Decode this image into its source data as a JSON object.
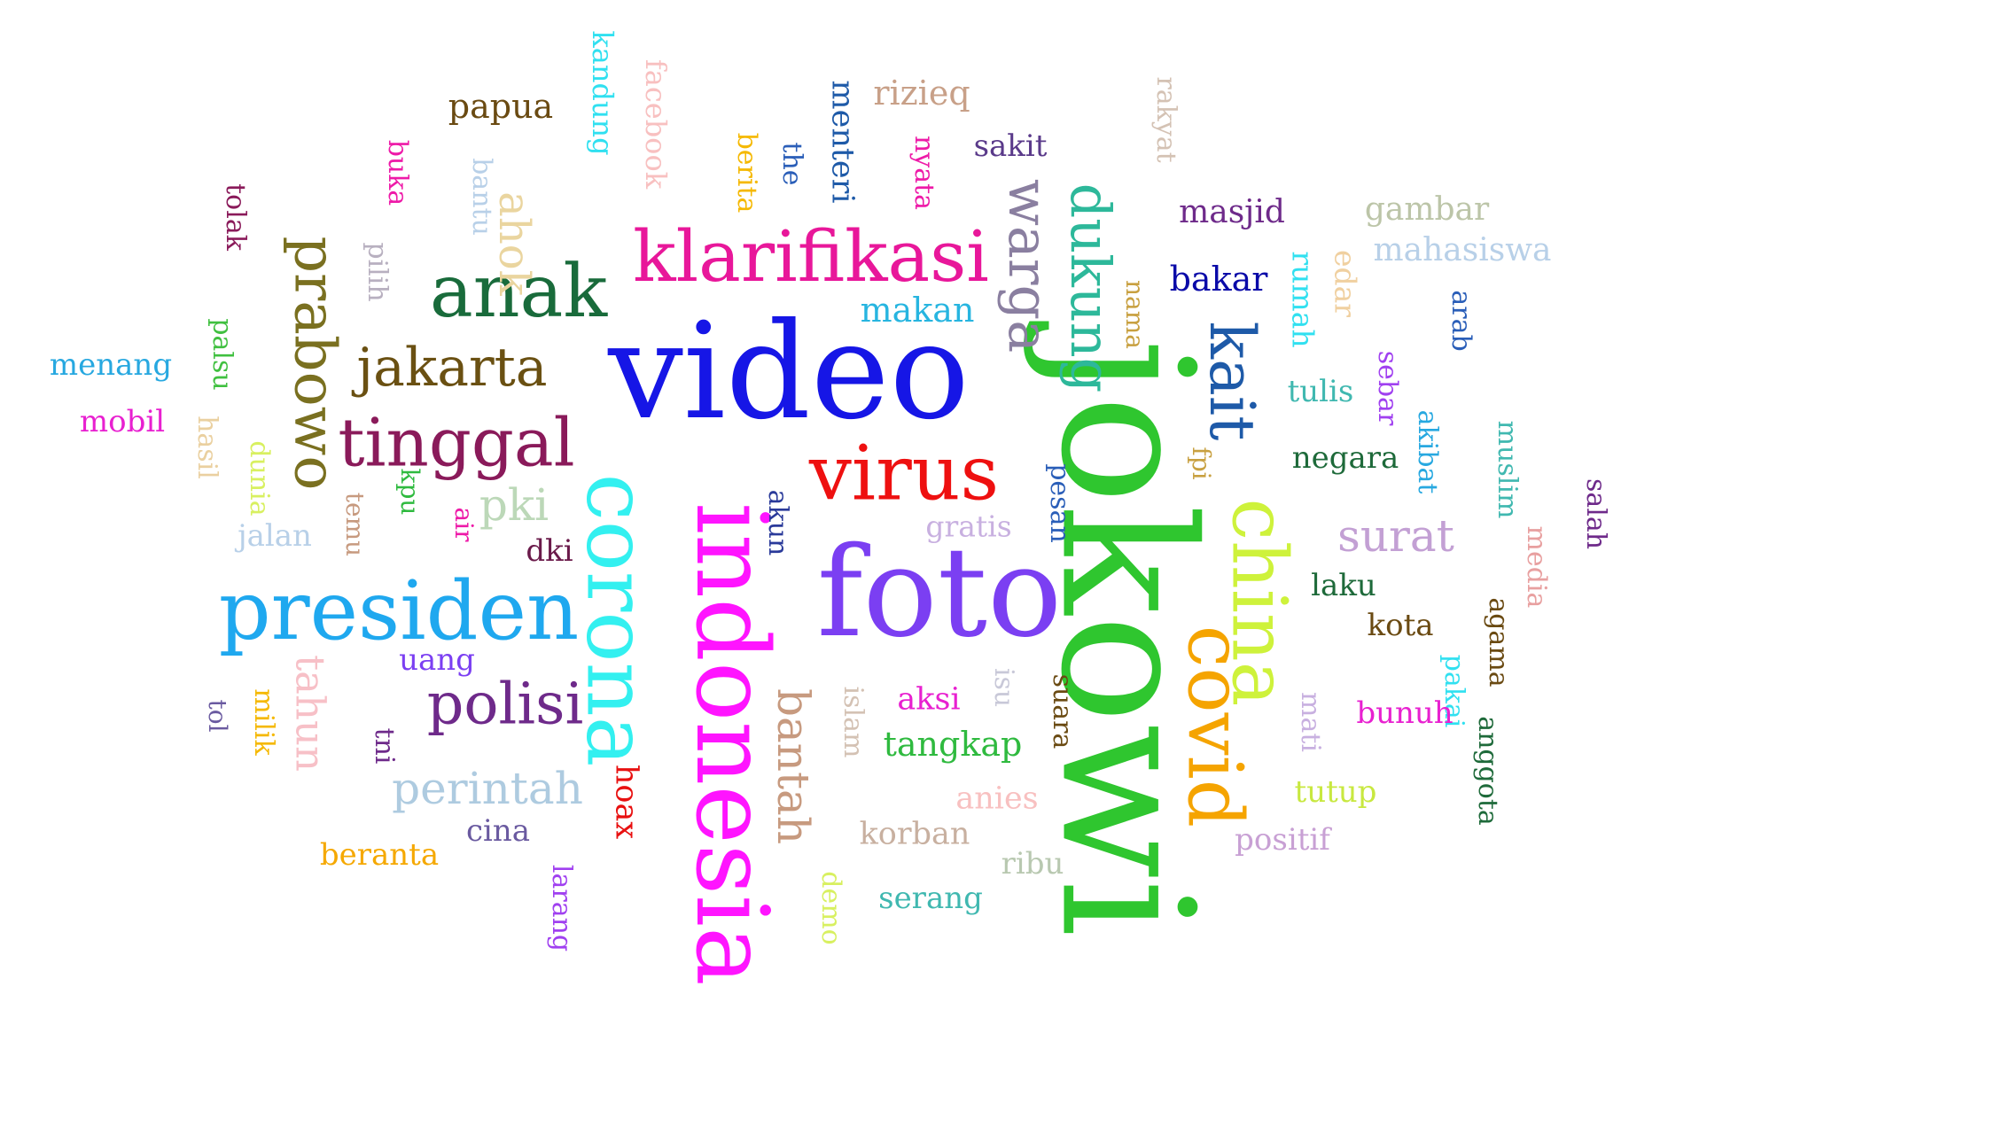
{
  "words": [
    {
      "text": "video",
      "color": "#1616e6",
      "vertical": false
    },
    {
      "text": "foto",
      "color": "#7b3ff2",
      "vertical": false
    },
    {
      "text": "jokowi",
      "color": "#2fc62f",
      "vertical": true
    },
    {
      "text": "indonesia",
      "color": "#ff14ff",
      "vertical": true
    },
    {
      "text": "corona",
      "color": "#33f0f0",
      "vertical": true
    },
    {
      "text": "presiden",
      "color": "#1fa8ef",
      "vertical": false
    },
    {
      "text": "klarifikasi",
      "color": "#e8179a",
      "vertical": false
    },
    {
      "text": "virus",
      "color": "#ee1010",
      "vertical": false
    },
    {
      "text": "covid",
      "color": "#f5a400",
      "vertical": true
    },
    {
      "text": "china",
      "color": "#cef23b",
      "vertical": true
    },
    {
      "text": "anak",
      "color": "#196b3b",
      "vertical": false
    },
    {
      "text": "tinggal",
      "color": "#8a1a5a",
      "vertical": false
    },
    {
      "text": "prabowo",
      "color": "#7a7020",
      "vertical": true
    },
    {
      "text": "jakarta",
      "color": "#6a5012",
      "vertical": false
    },
    {
      "text": "polisi",
      "color": "#6e2a8a",
      "vertical": false
    },
    {
      "text": "kait",
      "color": "#1e5aa8",
      "vertical": true
    },
    {
      "text": "warga",
      "color": "#8a7fa0",
      "vertical": true
    },
    {
      "text": "dukung",
      "color": "#2db89a",
      "vertical": true
    },
    {
      "text": "perintah",
      "color": "#aecbe0",
      "vertical": false
    },
    {
      "text": "bantah",
      "color": "#c79a7f",
      "vertical": true
    },
    {
      "text": "surat",
      "color": "#c3a0d4",
      "vertical": false
    },
    {
      "text": "tahun",
      "color": "#f7c0c7",
      "vertical": true
    },
    {
      "text": "pki",
      "color": "#bcd8b8",
      "vertical": false
    },
    {
      "text": "ahok",
      "color": "#ead59f",
      "vertical": true
    },
    {
      "text": "makan",
      "color": "#27b5e0",
      "vertical": false
    },
    {
      "text": "bakar",
      "color": "#0a0aa8",
      "vertical": false
    },
    {
      "text": "hoax",
      "color": "#e81010",
      "vertical": true
    },
    {
      "text": "tangkap",
      "color": "#2fba3f",
      "vertical": false
    },
    {
      "text": "papua",
      "color": "#6a4a12",
      "vertical": false
    },
    {
      "text": "rizieq",
      "color": "#c8a088",
      "vertical": false
    },
    {
      "text": "menteri",
      "color": "#1e5aa8",
      "vertical": true
    },
    {
      "text": "kandung",
      "color": "#30e0f0",
      "vertical": true
    },
    {
      "text": "facebook",
      "color": "#f8c0c0",
      "vertical": true
    },
    {
      "text": "berita",
      "color": "#f5b800",
      "vertical": true
    },
    {
      "text": "the",
      "color": "#2a5eb8",
      "vertical": true
    },
    {
      "text": "nyata",
      "color": "#ee1aa8",
      "vertical": true
    },
    {
      "text": "sakit",
      "color": "#5a3a8a",
      "vertical": false
    },
    {
      "text": "rakyat",
      "color": "#d4c2b4",
      "vertical": true
    },
    {
      "text": "masjid",
      "color": "#6e2a8a",
      "vertical": false
    },
    {
      "text": "gambar",
      "color": "#bcc5a8",
      "vertical": false
    },
    {
      "text": "mahasiswa",
      "color": "#b8d0e8",
      "vertical": false
    },
    {
      "text": "buka",
      "color": "#ee1aa8",
      "vertical": true
    },
    {
      "text": "bantu",
      "color": "#b8d0e8",
      "vertical": true
    },
    {
      "text": "tolak",
      "color": "#8a1a5a",
      "vertical": true
    },
    {
      "text": "pilih",
      "color": "#b8b0c0",
      "vertical": true
    },
    {
      "text": "palsu",
      "color": "#40c040",
      "vertical": true
    },
    {
      "text": "menang",
      "color": "#27a8e0",
      "vertical": false
    },
    {
      "text": "mobil",
      "color": "#e820d0",
      "vertical": false
    },
    {
      "text": "hasil",
      "color": "#ead0a0",
      "vertical": true
    },
    {
      "text": "dunia",
      "color": "#d8f060",
      "vertical": true
    },
    {
      "text": "temu",
      "color": "#c79a7f",
      "vertical": true
    },
    {
      "text": "kpu",
      "color": "#2fba3f",
      "vertical": true
    },
    {
      "text": "air",
      "color": "#ee1aa8",
      "vertical": true
    },
    {
      "text": "dki",
      "color": "#6a1a4a",
      "vertical": false
    },
    {
      "text": "jalan",
      "color": "#b8d0e8",
      "vertical": false
    },
    {
      "text": "akun",
      "color": "#2a3a9a",
      "vertical": true
    },
    {
      "text": "gratis",
      "color": "#c8b0e0",
      "vertical": false
    },
    {
      "text": "pesan",
      "color": "#2a5eb8",
      "vertical": true
    },
    {
      "text": "nama",
      "color": "#c8a040",
      "vertical": true
    },
    {
      "text": "rumah",
      "color": "#30e0f0",
      "vertical": true
    },
    {
      "text": "edar",
      "color": "#f0d0a0",
      "vertical": true
    },
    {
      "text": "arab",
      "color": "#2a5eb8",
      "vertical": true
    },
    {
      "text": "tulis",
      "color": "#40b8b0",
      "vertical": false
    },
    {
      "text": "sebar",
      "color": "#a040f0",
      "vertical": true
    },
    {
      "text": "akibat",
      "color": "#27a8e0",
      "vertical": true
    },
    {
      "text": "muslim",
      "color": "#40b8b0",
      "vertical": true
    },
    {
      "text": "fpi",
      "color": "#c8a040",
      "vertical": true
    },
    {
      "text": "negara",
      "color": "#1e6a3a",
      "vertical": false
    },
    {
      "text": "salah",
      "color": "#6e2a8a",
      "vertical": true
    },
    {
      "text": "media",
      "color": "#e8a0a0",
      "vertical": true
    },
    {
      "text": "agama",
      "color": "#6a4a12",
      "vertical": true
    },
    {
      "text": "laku",
      "color": "#1e6a3a",
      "vertical": false
    },
    {
      "text": "pakai",
      "color": "#30e0f0",
      "vertical": true
    },
    {
      "text": "kota",
      "color": "#6a4a12",
      "vertical": false
    },
    {
      "text": "uang",
      "color": "#7b3ff2",
      "vertical": false
    },
    {
      "text": "milik",
      "color": "#f5b800",
      "vertical": true
    },
    {
      "text": "tol",
      "color": "#6a5aa0",
      "vertical": true
    },
    {
      "text": "tni",
      "color": "#6e2a8a",
      "vertical": true
    },
    {
      "text": "islam",
      "color": "#d4c2b4",
      "vertical": true
    },
    {
      "text": "isu",
      "color": "#c8c8d8",
      "vertical": true
    },
    {
      "text": "aksi",
      "color": "#e820d0",
      "vertical": false
    },
    {
      "text": "suara",
      "color": "#6a4a12",
      "vertical": true
    },
    {
      "text": "mati",
      "color": "#c8b0e0",
      "vertical": true
    },
    {
      "text": "bunuh",
      "color": "#e820d0",
      "vertical": false
    },
    {
      "text": "anggota",
      "color": "#1e6a3a",
      "vertical": true
    },
    {
      "text": "anies",
      "color": "#f8c0c0",
      "vertical": false
    },
    {
      "text": "tutup",
      "color": "#c8e840",
      "vertical": false
    },
    {
      "text": "korban",
      "color": "#c8b0a0",
      "vertical": false
    },
    {
      "text": "positif",
      "color": "#c8a0d4",
      "vertical": false
    },
    {
      "text": "cina",
      "color": "#6a5aa0",
      "vertical": false
    },
    {
      "text": "beranta",
      "color": "#f5a800",
      "vertical": false
    },
    {
      "text": "ribu",
      "color": "#b8c8b0",
      "vertical": false
    },
    {
      "text": "larang",
      "color": "#a040f0",
      "vertical": true
    },
    {
      "text": "demo",
      "color": "#d8f060",
      "vertical": true
    },
    {
      "text": "serang",
      "color": "#40b8b0",
      "vertical": false
    }
  ]
}
